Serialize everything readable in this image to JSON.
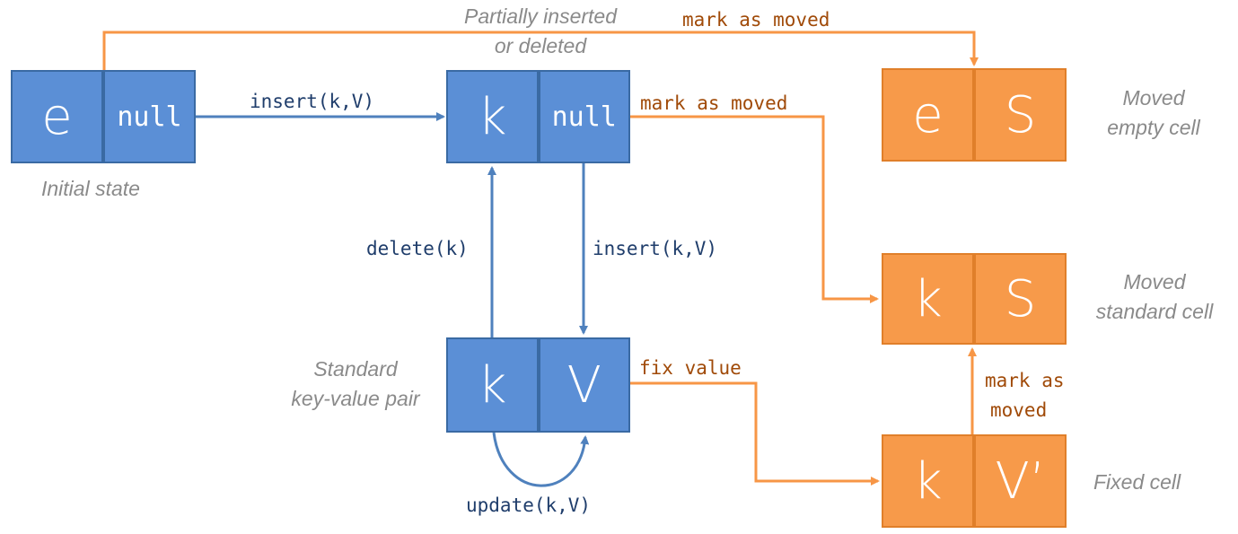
{
  "cells": {
    "initial": {
      "left": "e",
      "right": "null"
    },
    "partial": {
      "left": "k",
      "right": "null"
    },
    "standard": {
      "left": "k",
      "right": "V"
    },
    "moved_empty": {
      "left": "e",
      "right": "S"
    },
    "moved_standard": {
      "left": "k",
      "right": "S"
    },
    "fixed": {
      "left": "k",
      "right": "V’"
    }
  },
  "captions": {
    "initial": "Initial state",
    "partial_line1": "Partially inserted",
    "partial_line2": "or deleted",
    "standard_line1": "Standard",
    "standard_line2": "key-value pair",
    "moved_empty_line1": "Moved",
    "moved_empty_line2": "empty cell",
    "moved_standard_line1": "Moved",
    "moved_standard_line2": "standard cell",
    "fixed": "Fixed cell"
  },
  "transitions": {
    "insert_top": "insert(k,V)",
    "delete": "delete(k)",
    "insert_down": "insert(k,V)",
    "update": "update(k,V)",
    "mark_top": "mark as moved",
    "mark_mid": "mark as moved",
    "fix_value": "fix value",
    "mark_as": "mark as",
    "moved": "moved"
  },
  "colors": {
    "blue": "#4f81bd",
    "orange": "#f79646"
  }
}
